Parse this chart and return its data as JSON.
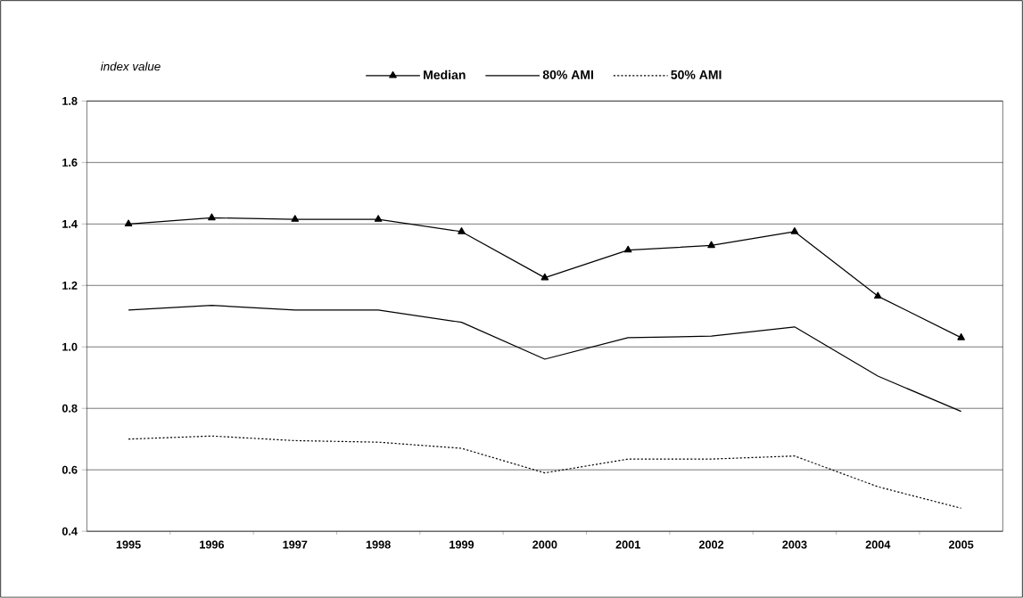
{
  "chart_data": {
    "type": "line",
    "ylabel": "index value",
    "categories": [
      "1995",
      "1996",
      "1997",
      "1998",
      "1999",
      "2000",
      "2001",
      "2002",
      "2003",
      "2004",
      "2005"
    ],
    "series": [
      {
        "name": "Median",
        "color": "#000000",
        "marker": "triangle",
        "line_style": "solid",
        "values": [
          1.4,
          1.42,
          1.415,
          1.415,
          1.375,
          1.225,
          1.315,
          1.33,
          1.375,
          1.165,
          1.03
        ]
      },
      {
        "name": "80% AMI",
        "color": "#000000",
        "marker": "none",
        "line_style": "solid",
        "values": [
          1.12,
          1.135,
          1.12,
          1.12,
          1.08,
          0.96,
          1.03,
          1.035,
          1.065,
          0.905,
          0.79
        ]
      },
      {
        "name": "50% AMI",
        "color": "#000000",
        "marker": "none",
        "line_style": "dotted",
        "values": [
          0.7,
          0.71,
          0.695,
          0.69,
          0.67,
          0.59,
          0.635,
          0.635,
          0.645,
          0.545,
          0.475
        ]
      }
    ],
    "ylim": [
      0.4,
      1.8
    ],
    "yticks": [
      {
        "value": 0.4,
        "label": "0.4"
      },
      {
        "value": 0.6,
        "label": "0.6"
      },
      {
        "value": 0.8,
        "label": "0.8"
      },
      {
        "value": 1.0,
        "label": "1.0"
      },
      {
        "value": 1.2,
        "label": "1.2"
      },
      {
        "value": 1.4,
        "label": "1.4"
      },
      {
        "value": 1.6,
        "label": "1.6"
      },
      {
        "value": 1.8,
        "label": "1.8"
      }
    ],
    "grid": "y",
    "legend": "top"
  }
}
